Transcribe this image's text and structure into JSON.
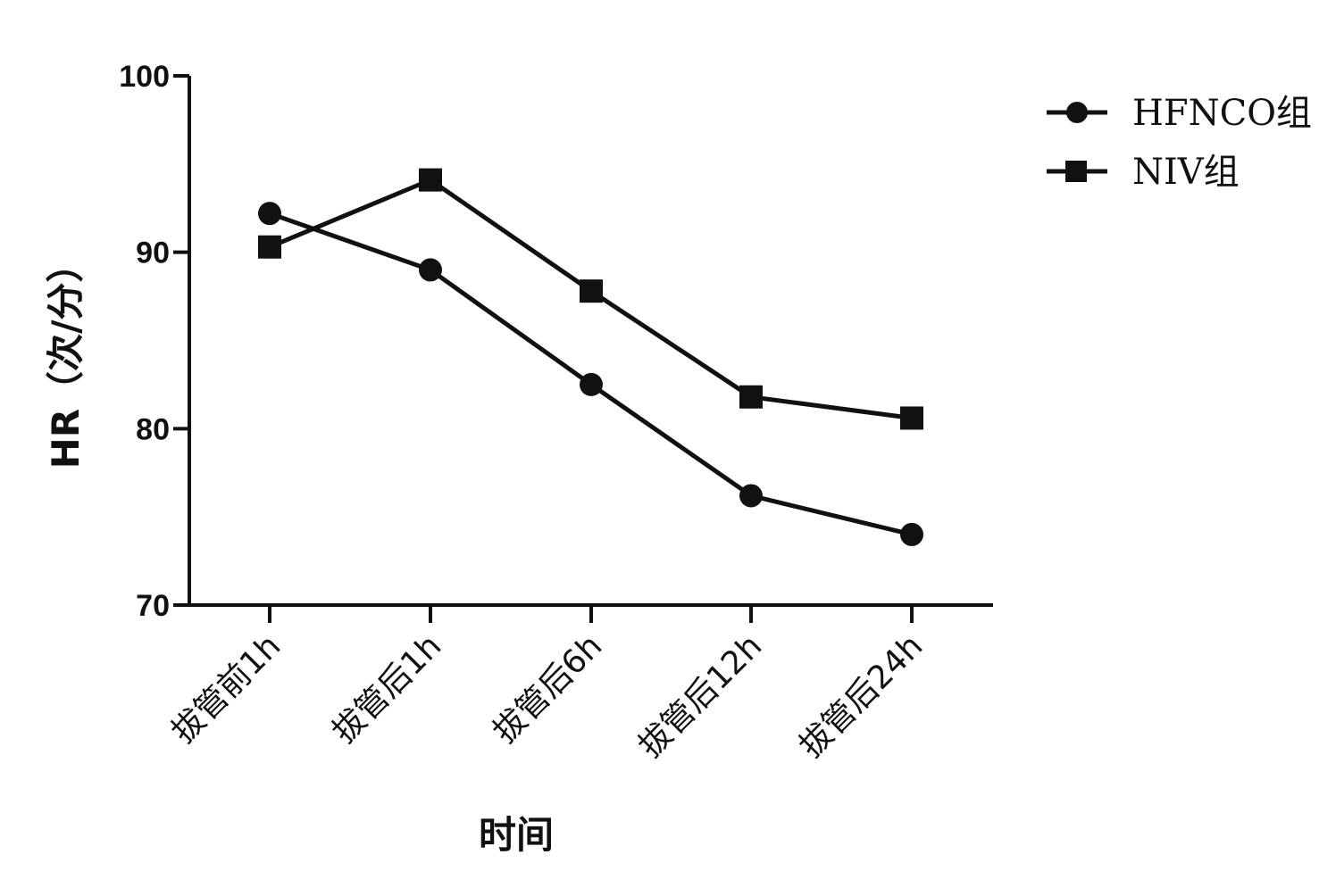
{
  "chart_data": {
    "type": "line",
    "categories": [
      "拔管前1h",
      "拔管后1h",
      "拔管后6h",
      "拔管后12h",
      "拔管后24h"
    ],
    "series": [
      {
        "name": "HFNCO组",
        "marker": "circle",
        "values": [
          92.2,
          89.0,
          82.5,
          76.2,
          74.0
        ]
      },
      {
        "name": "NIV组",
        "marker": "square",
        "values": [
          90.3,
          94.1,
          87.8,
          81.8,
          80.6
        ]
      }
    ],
    "ylabel": "HR（次/分）",
    "xlabel": "时间",
    "ylim": [
      70,
      100
    ],
    "yticks": [
      70,
      80,
      90,
      100
    ],
    "grid": false,
    "legend": "top-right",
    "color": "#111111"
  }
}
